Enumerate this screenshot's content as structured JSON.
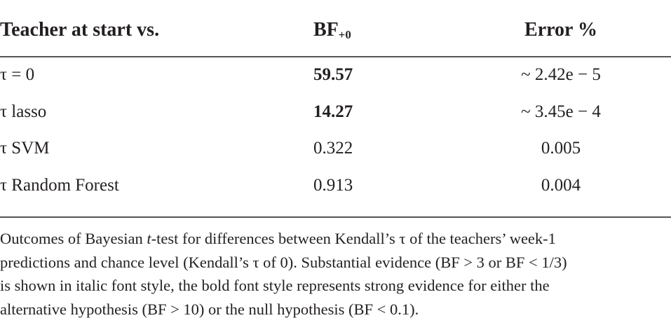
{
  "table": {
    "header": [
      {
        "text": "Teacher at start vs."
      },
      {
        "text": "BF",
        "sub": "+0"
      },
      {
        "text": "Error %"
      }
    ],
    "rows": [
      {
        "cells": [
          "τ = 0",
          "59.57",
          "~ 2.42e − 5"
        ],
        "bold_value": true
      },
      {
        "cells": [
          "τ lasso",
          "14.27",
          "~ 3.45e − 4"
        ],
        "bold_value": true
      },
      {
        "cells": [
          "τ SVM",
          "0.322",
          "0.005"
        ],
        "bold_value": false
      },
      {
        "cells": [
          "τ Random Forest",
          "0.913",
          "0.004"
        ],
        "bold_value": false
      }
    ]
  },
  "caption": {
    "lines": [
      [
        {
          "text": "Outcomes of Bayesian "
        },
        {
          "text": "t",
          "italic": true
        },
        {
          "text": "-test for differences between Kendall’s τ of the teachers’ week-1"
        }
      ],
      [
        {
          "text": "predictions and chance level (Kendall’s τ of 0). Substantial evidence (BF > 3 or BF < 1/3)"
        }
      ],
      [
        {
          "text": "is shown in italic font style, the bold font style represents strong evidence for either the"
        }
      ],
      [
        {
          "text": "alternative hypothesis (BF > 10) or the null hypothesis (BF < 0.1)."
        }
      ]
    ]
  }
}
